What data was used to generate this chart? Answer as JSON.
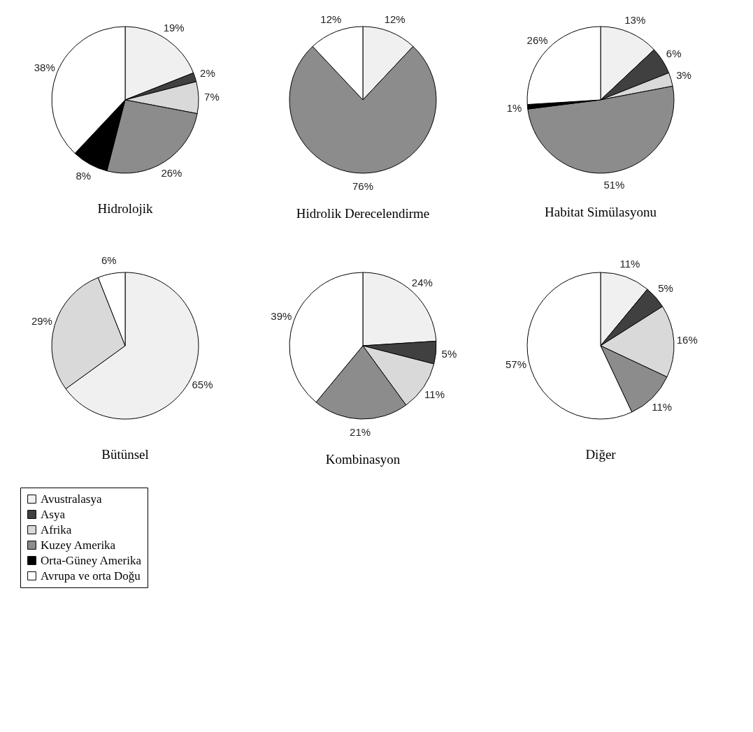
{
  "chart_data": [
    {
      "type": "pie",
      "title": "Hidrolojik",
      "categories": [
        "Avustralasya",
        "Asya",
        "Afrika",
        "Kuzey Amerika",
        "Orta-Güney Amerika",
        "Avrupa ve orta Doğu"
      ],
      "values": [
        19,
        2,
        7,
        26,
        8,
        38
      ],
      "value_labels": [
        "19%",
        "2%",
        "7%",
        "26%",
        "8%",
        "38%"
      ],
      "colors": [
        "#f0f0f0",
        "#404040",
        "#d9d9d9",
        "#8c8c8c",
        "#000000",
        "#ffffff"
      ],
      "legend": "bottom left"
    },
    {
      "type": "pie",
      "title": "Hidrolik Derecelendirme",
      "categories": [
        null,
        null,
        null
      ],
      "values": [
        12,
        76,
        12
      ],
      "value_labels": [
        "12%",
        "76%",
        "12%"
      ],
      "colors": [
        "#f0f0f0",
        "#8c8c8c",
        "#ffffff"
      ]
    },
    {
      "type": "pie",
      "title": "Habitat Simülasyonu",
      "categories": [
        null,
        null,
        null,
        null,
        null,
        null
      ],
      "values": [
        13,
        6,
        3,
        51,
        1,
        26
      ],
      "value_labels": [
        "13%",
        "6%",
        "3%",
        "51%",
        "1%",
        "26%"
      ],
      "colors": [
        "#f0f0f0",
        "#404040",
        "#d9d9d9",
        "#8c8c8c",
        "#000000",
        "#ffffff"
      ]
    },
    {
      "type": "pie",
      "title": "Bütünsel",
      "categories": [
        null,
        null,
        null
      ],
      "values": [
        65,
        29,
        6
      ],
      "value_labels": [
        "65%",
        "29%",
        "6%"
      ],
      "colors": [
        "#f0f0f0",
        "#d9d9d9",
        "#ffffff"
      ]
    },
    {
      "type": "pie",
      "title": "Kombinasyon",
      "categories": [
        null,
        null,
        null,
        null,
        null
      ],
      "values": [
        24,
        5,
        11,
        21,
        39
      ],
      "value_labels": [
        "24%",
        "5%",
        "11%",
        "21%",
        "39%"
      ],
      "colors": [
        "#f0f0f0",
        "#404040",
        "#d9d9d9",
        "#8c8c8c",
        "#ffffff"
      ]
    },
    {
      "type": "pie",
      "title": "Diğer",
      "categories": [
        null,
        null,
        null,
        null,
        null
      ],
      "values": [
        11,
        5,
        16,
        11,
        57
      ],
      "value_labels": [
        "11%",
        "5%",
        "16%",
        "11%",
        "57%"
      ],
      "colors": [
        "#f0f0f0",
        "#404040",
        "#d9d9d9",
        "#8c8c8c",
        "#ffffff"
      ]
    }
  ]
}
